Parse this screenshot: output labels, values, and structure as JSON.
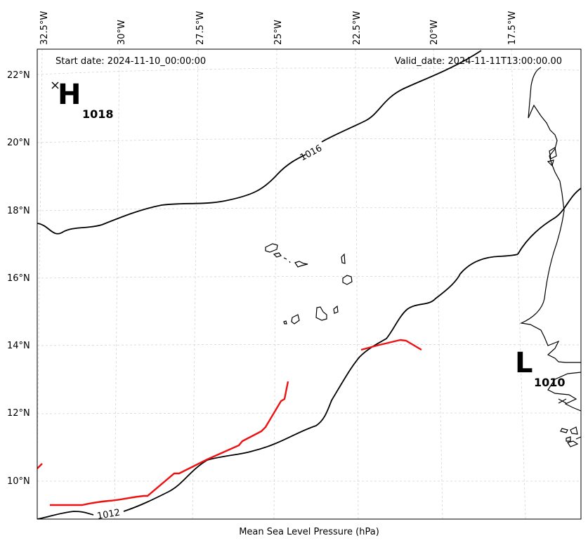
{
  "header": {
    "start_date": "Start date: 2024-11-10_00:00:00",
    "valid_date": "Valid_date: 2024-11-11T13:00:00.00"
  },
  "footer": {
    "caption": "Mean Sea Level Pressure (hPa)"
  },
  "axes": {
    "longitude_labels": [
      "32.5°W",
      "30°W",
      "27.5°W",
      "25°W",
      "22.5°W",
      "20°W",
      "17.5°W"
    ],
    "latitude_labels": [
      "22°N",
      "20°N",
      "18°N",
      "16°N",
      "14°N",
      "12°N",
      "10°N"
    ]
  },
  "pressure_centers": [
    {
      "letter": "H",
      "value": "1018"
    },
    {
      "letter": "L",
      "value": "1010"
    }
  ],
  "isobars": [
    {
      "label": "1016"
    },
    {
      "label": "1012"
    }
  ],
  "colors": {
    "isobar": "#000000",
    "front": "#ee1111",
    "coastline": "#000000",
    "grid": "#cccccc"
  }
}
